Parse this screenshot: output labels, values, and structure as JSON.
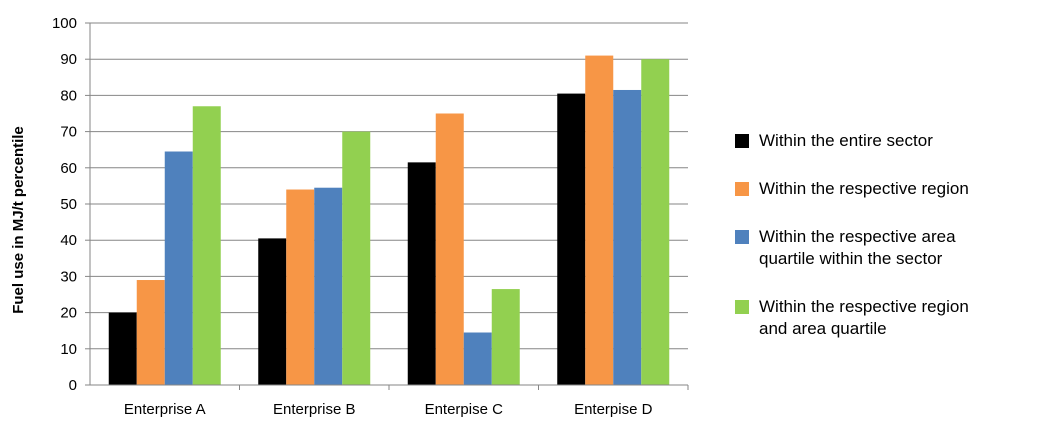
{
  "chart_data": {
    "type": "bar",
    "title": "",
    "xlabel": "",
    "ylabel": "Fuel use in MJ/t percentile",
    "ylim": [
      0,
      100
    ],
    "yticks": [
      0,
      10,
      20,
      30,
      40,
      50,
      60,
      70,
      80,
      90,
      100
    ],
    "grid": true,
    "legend_position": "right",
    "categories": [
      "Enterprise A",
      "Enterprise B",
      "Enterpise C",
      "Enterpise D"
    ],
    "series": [
      {
        "name": "Within the entire sector",
        "color": "#000000",
        "values": [
          20,
          40.5,
          61.5,
          80.5
        ]
      },
      {
        "name": "Within the respective region",
        "color": "#f79646",
        "values": [
          29,
          54,
          75,
          91
        ]
      },
      {
        "name": "Within the respective area\nquartile within the sector",
        "color": "#4f81bd",
        "values": [
          64.5,
          54.5,
          14.5,
          81.5
        ]
      },
      {
        "name": "Within the respective region\nand area quartile",
        "color": "#92d050",
        "values": [
          77,
          70,
          26.5,
          90
        ]
      }
    ]
  }
}
